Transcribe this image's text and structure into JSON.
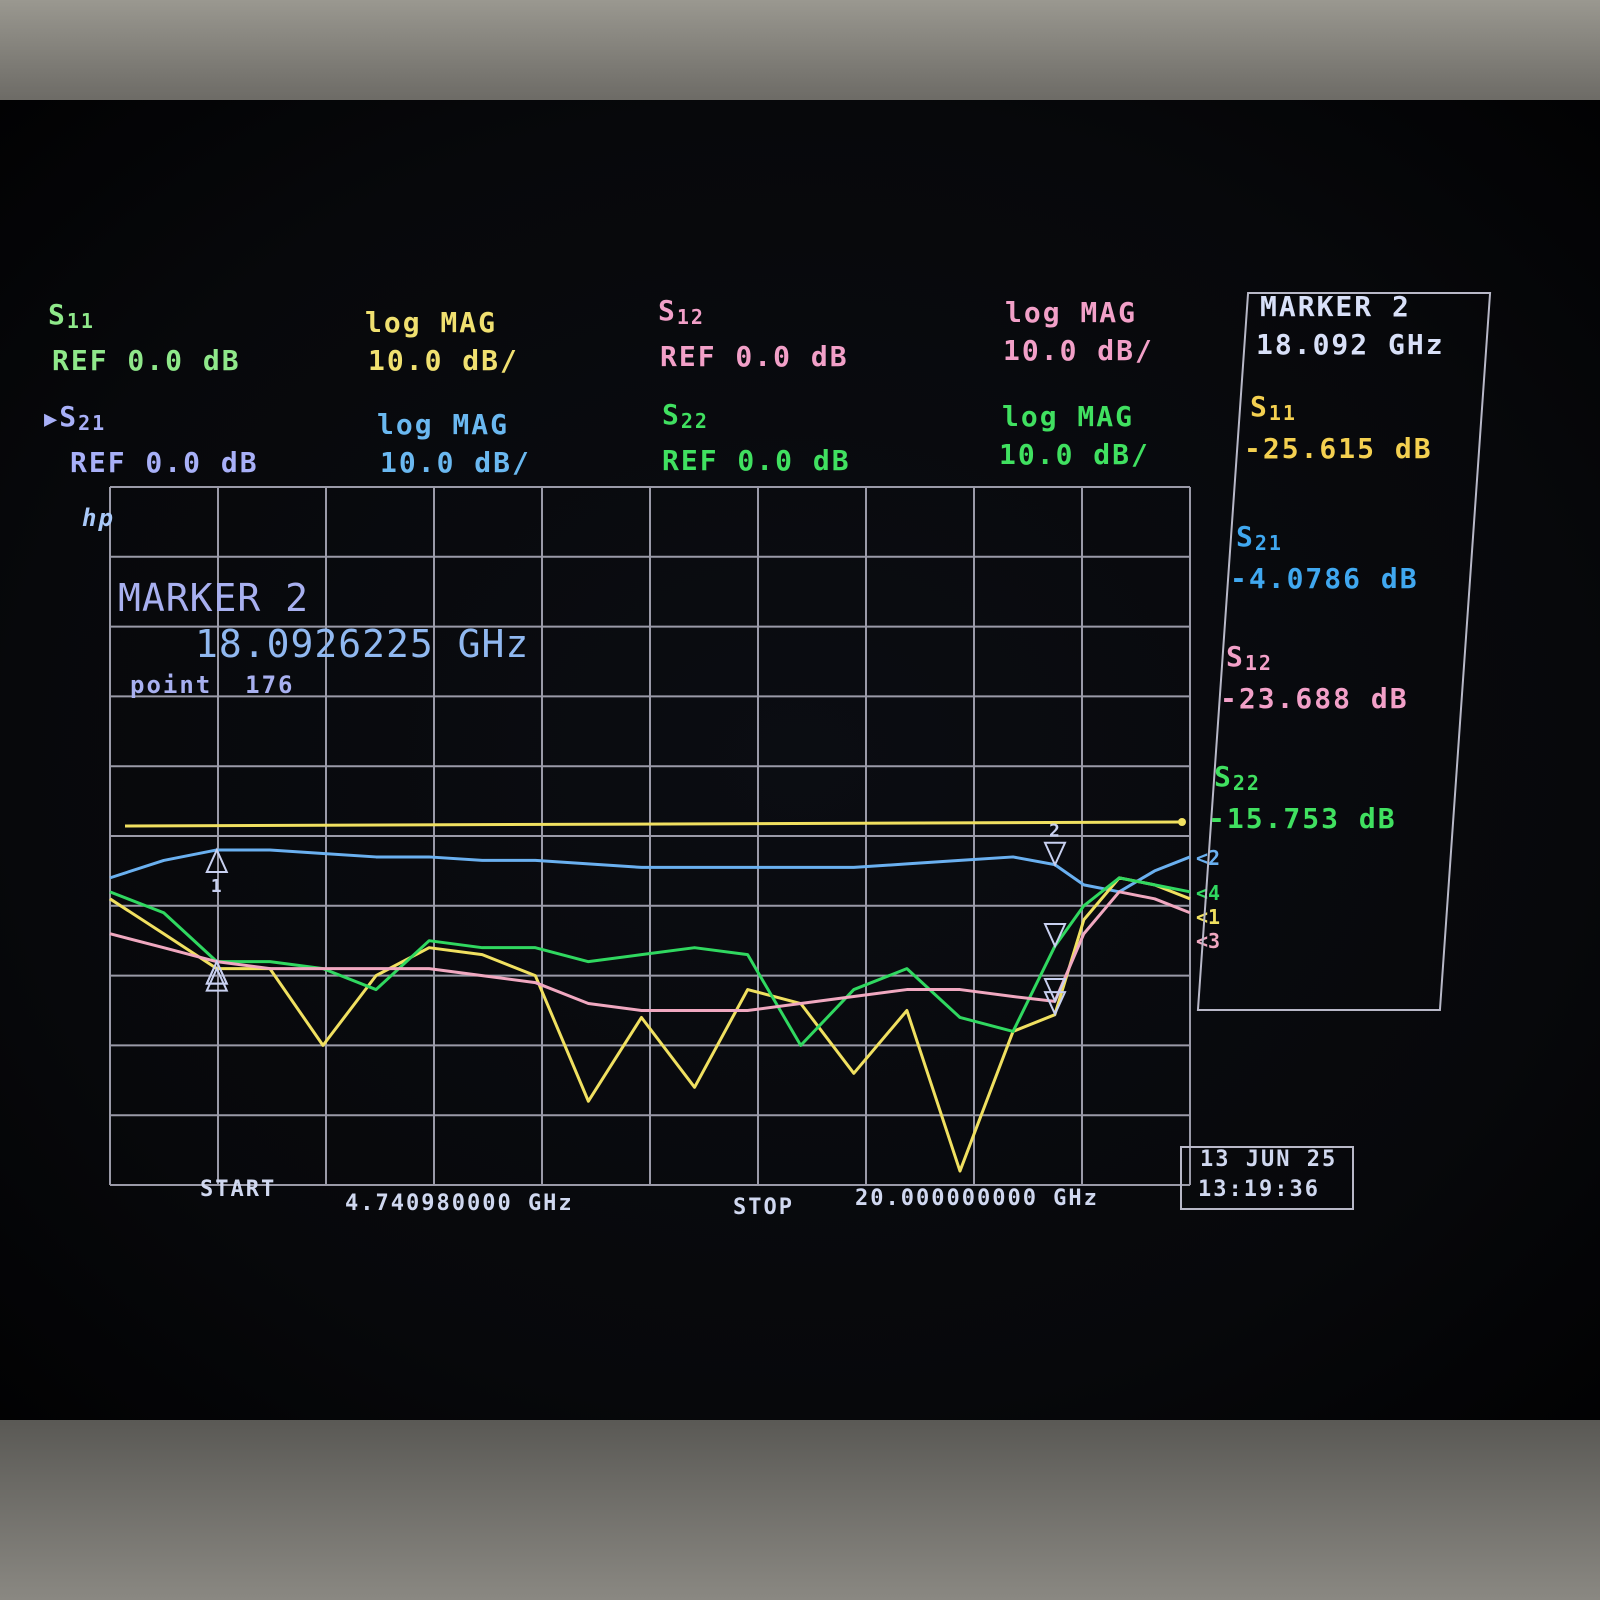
{
  "channels": [
    {
      "param": "S",
      "sub": "11",
      "ref": "REF 0.0 dB",
      "format": "log MAG",
      "scale": "10.0 dB/",
      "label_color": "#8fe88a",
      "format_color": "#f0e070"
    },
    {
      "param": "S",
      "sub": "12",
      "ref": "REF 0.0 dB",
      "format": "log MAG",
      "scale": "10.0 dB/",
      "label_color": "#f2a0c8",
      "format_color": "#f2a0c8"
    },
    {
      "param": "S",
      "sub": "21",
      "ref": "REF 0.0 dB",
      "format": "log MAG",
      "scale": "10.0 dB/",
      "label_color": "#a8b0f8",
      "format_color": "#6ab8f0",
      "active_indicator": "▶"
    },
    {
      "param": "S",
      "sub": "22",
      "ref": "REF 0.0 dB",
      "format": "log MAG",
      "scale": "10.0 dB/",
      "label_color": "#40e060",
      "format_color": "#40e060"
    }
  ],
  "logo": "hp",
  "marker_annotation": {
    "title": "MARKER 2",
    "freq": "18.0926225 GHz",
    "point_label": "point",
    "point": "176"
  },
  "marker_readout": {
    "title": "MARKER 2",
    "freq": "18.092 GHz",
    "values": [
      {
        "param": "S",
        "sub": "11",
        "value": "-25.615 dB",
        "color": "#f4d050"
      },
      {
        "param": "S",
        "sub": "21",
        "value": "-4.0786 dB",
        "color": "#40a8f0"
      },
      {
        "param": "S",
        "sub": "12",
        "value": "-23.688 dB",
        "color": "#f2a0c8"
      },
      {
        "param": "S",
        "sub": "22",
        "value": "-15.753 dB",
        "color": "#40e060"
      }
    ]
  },
  "footer": {
    "start_label": "START",
    "start_value": "4.740980000 GHz",
    "stop_label": "STOP",
    "stop_value": "20.000000000 GHz"
  },
  "datetime": {
    "date": "13 JUN 25",
    "time": "13:19:36"
  },
  "chart_data": {
    "type": "line",
    "xlabel": "",
    "ylabel": "",
    "xlim": [
      4.74098,
      20.0
    ],
    "ylim": [
      -50,
      50
    ],
    "y_per_div": 10,
    "reference_level": 0,
    "grid": true,
    "x_divisions": 10,
    "y_divisions": 10,
    "x": [
      4.74,
      5.5,
      6.25,
      7.0,
      7.75,
      8.5,
      9.25,
      10.0,
      10.75,
      11.5,
      12.25,
      13.0,
      13.75,
      14.5,
      15.25,
      16.0,
      16.75,
      17.5,
      18.09,
      18.5,
      19.0,
      19.5,
      20.0
    ],
    "series": [
      {
        "id": "S21",
        "color": "#6ab0f0",
        "end_label": "2",
        "values": [
          -6,
          -3.5,
          -2,
          -2,
          -2.5,
          -3,
          -3,
          -3.5,
          -3.5,
          -4,
          -4.5,
          -4.5,
          -4.5,
          -4.5,
          -4.5,
          -4,
          -3.5,
          -3,
          -4.1,
          -7,
          -8,
          -5,
          -3
        ]
      },
      {
        "id": "S11",
        "color": "#f0e060",
        "end_label": "1",
        "values": [
          -9,
          -14,
          -19,
          -19,
          -30,
          -20,
          -16,
          -17,
          -20,
          -38,
          -26,
          -36,
          -22,
          -24,
          -34,
          -25,
          -48,
          -28,
          -25.6,
          -12,
          -6,
          -7,
          -9
        ]
      },
      {
        "id": "S22",
        "color": "#30d860",
        "end_label": "4",
        "values": [
          -8,
          -11,
          -18,
          -18,
          -19,
          -22,
          -15,
          -16,
          -16,
          -18,
          -17,
          -16,
          -17,
          -30,
          -22,
          -19,
          -26,
          -28,
          -15.8,
          -10,
          -6,
          -7,
          -8
        ]
      },
      {
        "id": "S12",
        "color": "#f0a8c0",
        "end_label": "3",
        "values": [
          -14,
          -16,
          -18,
          -19,
          -19,
          -19,
          -19,
          -20,
          -21,
          -24,
          -25,
          -25,
          -25,
          -24,
          -23,
          -22,
          -22,
          -23,
          -23.7,
          -14,
          -8,
          -9,
          -11
        ]
      }
    ],
    "reference_line": {
      "value": 0,
      "color": "#f0e060"
    },
    "markers": [
      {
        "label": "1",
        "freq_ghz": 6.25
      },
      {
        "label": "2",
        "freq_ghz": 18.0926225
      }
    ]
  }
}
